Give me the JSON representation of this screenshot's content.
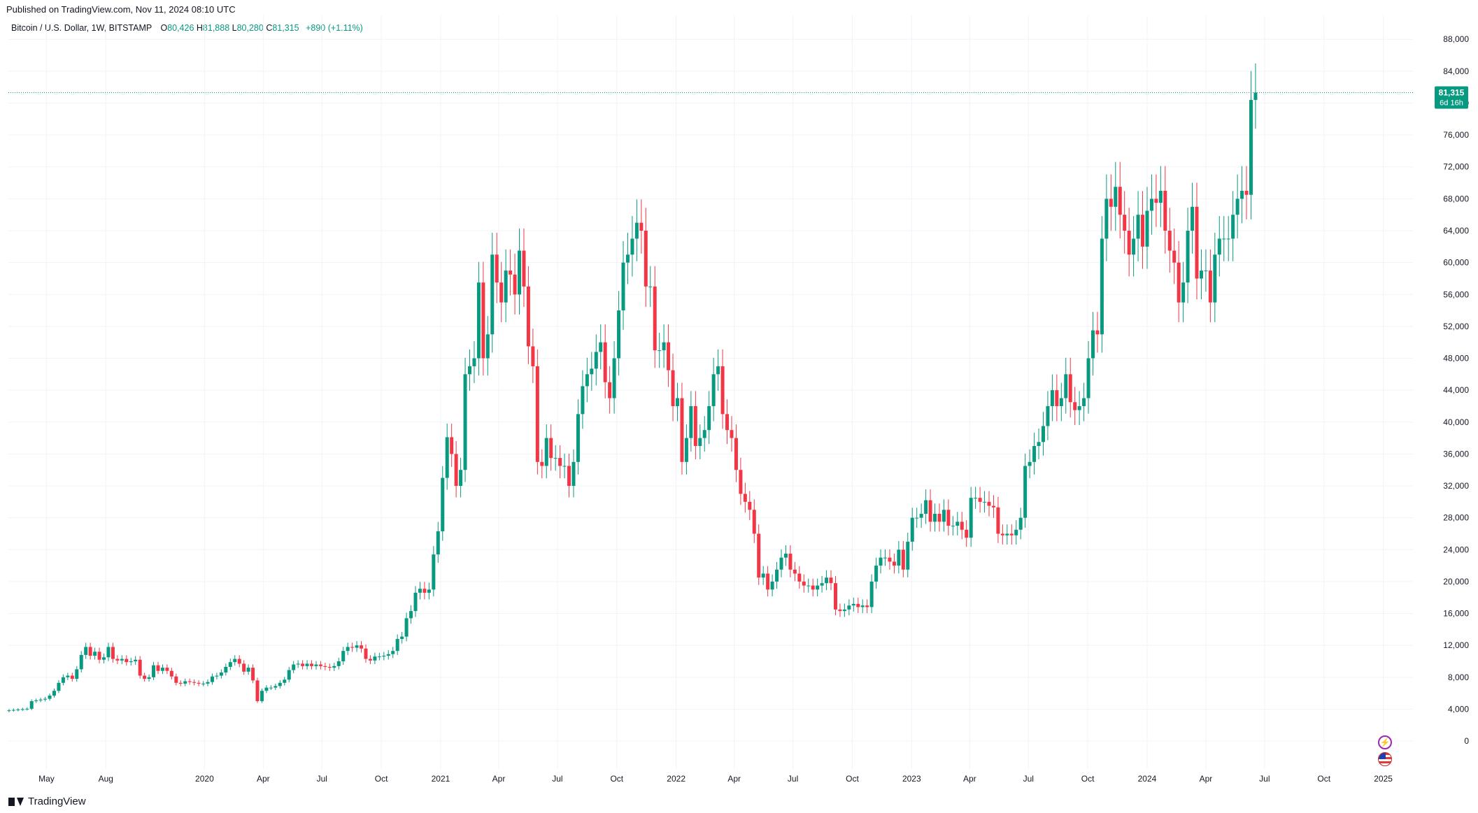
{
  "header": {
    "published": "Published on TradingView.com, Nov 11, 2024 08:10 UTC"
  },
  "legend": {
    "symbol": "Bitcoin / U.S. Dollar, 1W, BITSTAMP",
    "open_label": "O",
    "open_value": "80,426",
    "high_label": "H",
    "high_value": "81,888",
    "low_label": "L",
    "low_value": "80,280",
    "close_label": "C",
    "close_value": "81,315",
    "change": "+890 (+1.11%)"
  },
  "price_label": {
    "price": "81,315",
    "countdown": "6d 16h"
  },
  "footer": {
    "brand": "TradingView"
  },
  "icons": {
    "alert": "lightning-icon",
    "region": "us-flag-icon"
  },
  "colors": {
    "up": "#089981",
    "down": "#f23645",
    "grid": "#f0f3fa",
    "label_bg": "#089981",
    "pulse": "#9c27b0"
  },
  "chart_data": {
    "type": "candlestick",
    "interval": "1W",
    "y_axis_ticks": [
      0,
      4000,
      8000,
      12000,
      16000,
      20000,
      24000,
      28000,
      32000,
      36000,
      40000,
      44000,
      48000,
      52000,
      56000,
      60000,
      64000,
      68000,
      72000,
      76000,
      80000,
      84000,
      88000
    ],
    "y_tick_labels": [
      "0",
      "4,000",
      "8,000",
      "12,000",
      "16,000",
      "20,000",
      "24,000",
      "28,000",
      "32,000",
      "36,000",
      "40,000",
      "44,000",
      "48,000",
      "52,000",
      "56,000",
      "60,000",
      "64,000",
      "68,000",
      "72,000",
      "76,000",
      "80,000",
      "84,000",
      "88,000"
    ],
    "ylim": [
      -3500,
      91000
    ],
    "x_range": [
      "2019-03-03",
      "2025-02-16"
    ],
    "x_ticks": [
      {
        "date": "2019-05-01",
        "label": "May"
      },
      {
        "date": "2019-08-01",
        "label": "Aug"
      },
      {
        "date": "2020-01-01",
        "label": "2020"
      },
      {
        "date": "2020-04-01",
        "label": "Apr"
      },
      {
        "date": "2020-07-01",
        "label": "Jul"
      },
      {
        "date": "2020-10-01",
        "label": "Oct"
      },
      {
        "date": "2021-01-01",
        "label": "2021"
      },
      {
        "date": "2021-04-01",
        "label": "Apr"
      },
      {
        "date": "2021-07-01",
        "label": "Jul"
      },
      {
        "date": "2021-10-01",
        "label": "Oct"
      },
      {
        "date": "2022-01-01",
        "label": "2022"
      },
      {
        "date": "2022-04-01",
        "label": "Apr"
      },
      {
        "date": "2022-07-01",
        "label": "Jul"
      },
      {
        "date": "2022-10-01",
        "label": "Oct"
      },
      {
        "date": "2023-01-01",
        "label": "2023"
      },
      {
        "date": "2023-04-01",
        "label": "Apr"
      },
      {
        "date": "2023-07-01",
        "label": "Jul"
      },
      {
        "date": "2023-10-01",
        "label": "Oct"
      },
      {
        "date": "2024-01-01",
        "label": "2024"
      },
      {
        "date": "2024-04-01",
        "label": "Apr"
      },
      {
        "date": "2024-07-01",
        "label": "Jul"
      },
      {
        "date": "2024-10-01",
        "label": "Oct"
      },
      {
        "date": "2025-01-01",
        "label": "2025"
      }
    ],
    "start_date": "2019-03-04",
    "weekly_closes": [
      3850,
      3900,
      3950,
      4000,
      4050,
      5000,
      5100,
      5200,
      5300,
      5700,
      6300,
      7300,
      8000,
      8200,
      7800,
      9000,
      10800,
      11800,
      10700,
      11200,
      10200,
      10500,
      11800,
      10300,
      10100,
      10300,
      9900,
      10000,
      10200,
      8200,
      7800,
      8000,
      9500,
      8800,
      9200,
      8800,
      8100,
      7300,
      7200,
      7500,
      7400,
      7300,
      7200,
      7200,
      7400,
      8100,
      8200,
      8600,
      9300,
      9900,
      10300,
      9700,
      8700,
      9200,
      7600,
      5000,
      6300,
      6700,
      6700,
      6900,
      7300,
      7700,
      8900,
      9600,
      9700,
      9400,
      9700,
      9400,
      9600,
      9400,
      9300,
      9200,
      9400,
      10000,
      11300,
      11800,
      11700,
      12000,
      11600,
      10300,
      10100,
      10600,
      10600,
      10700,
      10900,
      11300,
      12800,
      13100,
      15400,
      16300,
      18600,
      19100,
      18600,
      19000,
      23400,
      26300,
      33000,
      38100,
      36000,
      32000,
      34000,
      46000,
      47000,
      48000,
      57500,
      48000,
      51000,
      61000,
      57500,
      55000,
      59000,
      58500,
      56000,
      61500,
      57000,
      49500,
      47000,
      35000,
      34500,
      38000,
      35500,
      35500,
      34500,
      34500,
      32000,
      35000,
      41000,
      44500,
      46000,
      46700,
      48800,
      50000,
      45000,
      43000,
      48000,
      54000,
      60000,
      61000,
      63000,
      65000,
      64000,
      57000,
      57000,
      49000,
      49000,
      50000,
      46500,
      42000,
      43000,
      35000,
      38000,
      42000,
      37000,
      38000,
      39000,
      42000,
      46000,
      47000,
      41000,
      39000,
      38000,
      34000,
      31000,
      30000,
      29000,
      26000,
      20500,
      21000,
      19000,
      20000,
      21500,
      23000,
      23500,
      21500,
      21000,
      20000,
      19500,
      19500,
      19000,
      19500,
      19800,
      20500,
      19800,
      16500,
      16300,
      16500,
      17000,
      17200,
      16800,
      17000,
      16800,
      20000,
      22000,
      23000,
      23000,
      22500,
      22000,
      24000,
      21500,
      25000,
      28000,
      28000,
      28500,
      30200,
      27500,
      28500,
      27500,
      29000,
      27000,
      27000,
      27500,
      26500,
      25500,
      30500,
      30500,
      30000,
      30000,
      29500,
      29300,
      26000,
      25800,
      26000,
      25800,
      26500,
      28000,
      34500,
      35000,
      37000,
      37500,
      39500,
      42000,
      44000,
      42000,
      43000,
      46000,
      42500,
      41500,
      42000,
      43000,
      48000,
      51500,
      51000,
      63000,
      68000,
      67000,
      69500,
      66000,
      64000,
      61000,
      63000,
      66000,
      62000,
      66500,
      68000,
      67500,
      69000,
      64000,
      61500,
      60000,
      55000,
      57500,
      64000,
      67000,
      58000,
      59000,
      59000,
      55000,
      61000,
      63000,
      63000,
      63000,
      66000,
      68000,
      69000,
      68500,
      80400,
      81315
    ]
  }
}
